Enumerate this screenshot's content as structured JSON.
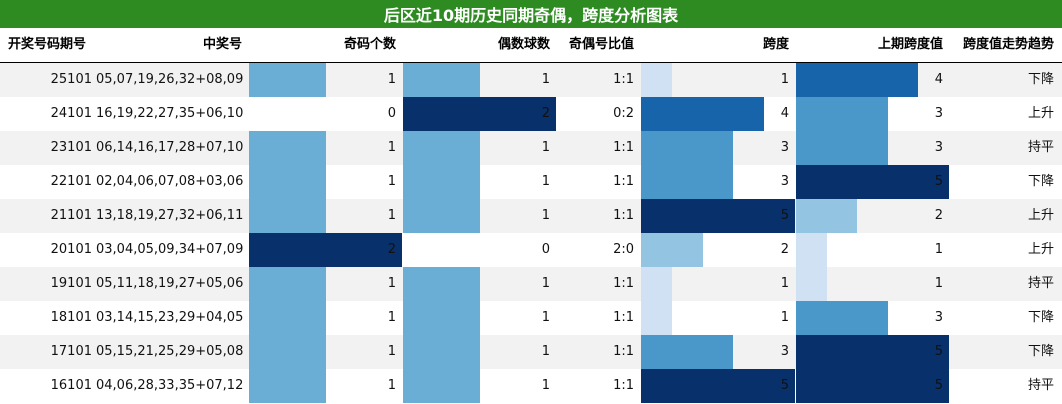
{
  "title": "后区近10期历史同期奇偶，跨度分析图表",
  "colors": {
    "title_bg": "#2e8b22",
    "bar_levels": [
      "#cfe1f2",
      "#93c4e2",
      "#4a98c9",
      "#1764ab",
      "#08306b"
    ],
    "mid_level": "#6aaed6"
  },
  "chart_data": {
    "type": "table",
    "columns": [
      "开奖号码期号",
      "中奖号",
      "奇码个数",
      "偶数球数",
      "奇偶号比值",
      "跨度",
      "上期跨度值",
      "跨度值走势趋势"
    ],
    "rows": [
      {
        "period": "25101",
        "numbers": "05,07,19,26,32+08,09",
        "odd": 1,
        "even": 1,
        "ratio": "1:1",
        "span": 1,
        "prev_span": 4,
        "trend": "下降"
      },
      {
        "period": "24101",
        "numbers": "16,19,22,27,35+06,10",
        "odd": 0,
        "even": 2,
        "ratio": "0:2",
        "span": 4,
        "prev_span": 3,
        "trend": "上升"
      },
      {
        "period": "23101",
        "numbers": "06,14,16,17,28+07,10",
        "odd": 1,
        "even": 1,
        "ratio": "1:1",
        "span": 3,
        "prev_span": 3,
        "trend": "持平"
      },
      {
        "period": "22101",
        "numbers": "02,04,06,07,08+03,06",
        "odd": 1,
        "even": 1,
        "ratio": "1:1",
        "span": 3,
        "prev_span": 5,
        "trend": "下降"
      },
      {
        "period": "21101",
        "numbers": "13,18,19,27,32+06,11",
        "odd": 1,
        "even": 1,
        "ratio": "1:1",
        "span": 5,
        "prev_span": 2,
        "trend": "上升"
      },
      {
        "period": "20101",
        "numbers": "03,04,05,09,34+07,09",
        "odd": 2,
        "even": 0,
        "ratio": "2:0",
        "span": 2,
        "prev_span": 1,
        "trend": "上升"
      },
      {
        "period": "19101",
        "numbers": "05,11,18,19,27+05,06",
        "odd": 1,
        "even": 1,
        "ratio": "1:1",
        "span": 1,
        "prev_span": 1,
        "trend": "持平"
      },
      {
        "period": "18101",
        "numbers": "03,14,15,23,29+04,05",
        "odd": 1,
        "even": 1,
        "ratio": "1:1",
        "span": 1,
        "prev_span": 3,
        "trend": "下降"
      },
      {
        "period": "17101",
        "numbers": "05,15,21,25,29+05,08",
        "odd": 1,
        "even": 1,
        "ratio": "1:1",
        "span": 3,
        "prev_span": 5,
        "trend": "下降"
      },
      {
        "period": "16101",
        "numbers": "04,06,28,33,35+07,12",
        "odd": 1,
        "even": 1,
        "ratio": "1:1",
        "span": 5,
        "prev_span": 5,
        "trend": "持平"
      }
    ]
  }
}
